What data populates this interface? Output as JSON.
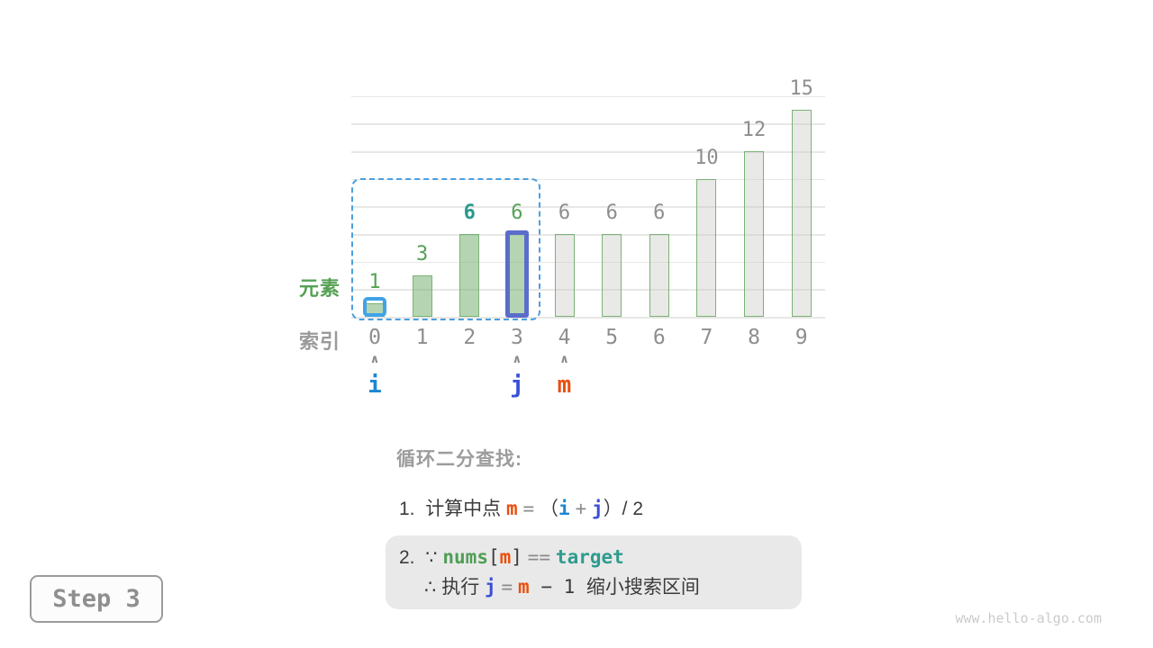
{
  "page": {
    "step_badge": "Step 3",
    "watermark": "www.hello-algo.com"
  },
  "chart_data": {
    "type": "bar",
    "title": "",
    "categories": [
      "0",
      "1",
      "2",
      "3",
      "4",
      "5",
      "6",
      "7",
      "8",
      "9"
    ],
    "values": [
      1,
      3,
      6,
      6,
      6,
      6,
      6,
      10,
      12,
      15
    ],
    "xlabel": "索引",
    "ylabel": "元素",
    "ylim": [
      0,
      16
    ],
    "grid_step": 2,
    "grid": "horizontal-only",
    "legend": null,
    "bar_states": [
      "in-range",
      "in-range",
      "in-range",
      "in-range",
      "out-of-range",
      "out-of-range",
      "out-of-range",
      "out-of-range",
      "out-of-range",
      "out-of-range"
    ],
    "value_label_colors": [
      "green",
      "green",
      "teal",
      "green",
      "gray",
      "gray",
      "gray",
      "gray",
      "gray",
      "gray"
    ],
    "search_interval": {
      "from": 0,
      "to": 3
    },
    "highlights": {
      "small_blue_box_index": 0,
      "thick_outline_index": 3
    },
    "pointers": [
      {
        "label": "i",
        "index": 0,
        "color": "#1d87d2"
      },
      {
        "label": "j",
        "index": 3,
        "color": "#3a4fd8"
      },
      {
        "label": "m",
        "index": 4,
        "color": "#e8500f"
      }
    ],
    "row_labels": {
      "element": "元素",
      "index": "索引"
    }
  },
  "annotation": {
    "heading": "循环二分查找:",
    "line1": [
      {
        "t": "1.  ",
        "c": "plain"
      },
      {
        "t": "计算中点 ",
        "c": "plain"
      },
      {
        "t": "m",
        "c": "m"
      },
      {
        "t": " ",
        "c": "plain"
      },
      {
        "t": "=",
        "c": "op"
      },
      {
        "t": " （",
        "c": "plain"
      },
      {
        "t": "i",
        "c": "i"
      },
      {
        "t": " ",
        "c": "plain"
      },
      {
        "t": "+",
        "c": "op"
      },
      {
        "t": " ",
        "c": "plain"
      },
      {
        "t": "j",
        "c": "j"
      },
      {
        "t": "）/ 2",
        "c": "plain"
      }
    ],
    "box_lines": [
      [
        {
          "t": "2.  ",
          "c": "plain"
        },
        {
          "t": "∵ ",
          "c": "plain"
        },
        {
          "t": "nums",
          "c": "nums"
        },
        {
          "t": "[",
          "c": "code"
        },
        {
          "t": "m",
          "c": "m"
        },
        {
          "t": "]",
          "c": "code"
        },
        {
          "t": " ",
          "c": "plain"
        },
        {
          "t": "==",
          "c": "op"
        },
        {
          "t": " ",
          "c": "plain"
        },
        {
          "t": "target",
          "c": "target"
        }
      ],
      [
        {
          "t": "∴ 执行 ",
          "c": "plain"
        },
        {
          "t": "j",
          "c": "j"
        },
        {
          "t": " ",
          "c": "plain"
        },
        {
          "t": "=",
          "c": "op"
        },
        {
          "t": " ",
          "c": "plain"
        },
        {
          "t": "m",
          "c": "m"
        },
        {
          "t": " − 1 ",
          "c": "code"
        },
        {
          "t": "缩小搜索区间",
          "c": "plain"
        }
      ]
    ]
  },
  "colors": {
    "bar_green_fill": "rgba(121,178,114,0.55)",
    "bar_gray_fill": "rgba(203,203,197,0.42)",
    "bar_border_green": "#7ab377",
    "gridline": "#e7e7e5",
    "interval_dash": "#4b9fdf",
    "small_box_blue": "#41a3e6",
    "thick_outline_indigo": "#5b6dcb",
    "label_green": "#55a155",
    "label_teal": "#27998c",
    "label_gray": "#8e8e8e",
    "pointer_caret": "#8a8a8a",
    "i": "#1d87d2",
    "j": "#3a4fd8",
    "m": "#e8500f",
    "nums": "#4f9e54",
    "target": "#2f9c8e",
    "text_dark": "#3b3b3b",
    "op_gray": "#8b8b8b",
    "heading_gray": "#9c9c9c",
    "note_box_bg": "#e9e9e9"
  }
}
